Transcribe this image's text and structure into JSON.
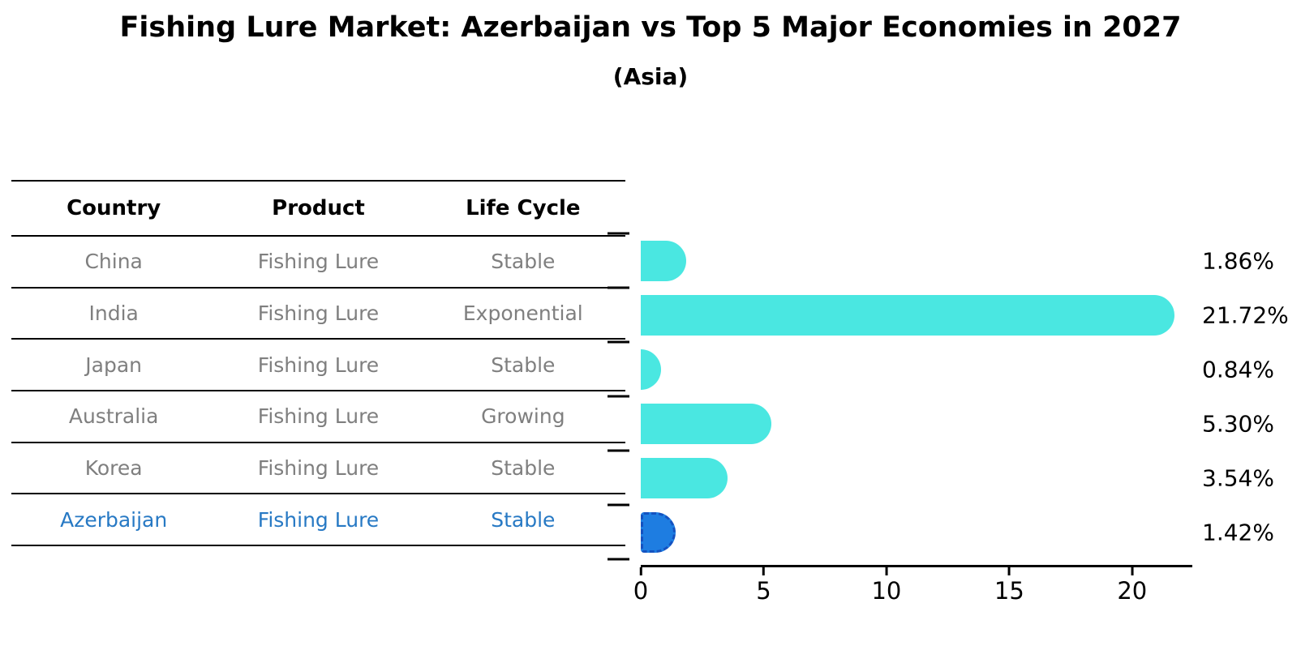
{
  "title": "Fishing Lure Market: Azerbaijan vs Top 5 Major Economies in 2027",
  "subtitle": "(Asia)",
  "table": {
    "headers": [
      "Country",
      "Product",
      "Life Cycle"
    ],
    "rows": [
      {
        "country": "China",
        "product": "Fishing Lure",
        "life_cycle": "Stable",
        "highlight": false
      },
      {
        "country": "India",
        "product": "Fishing Lure",
        "life_cycle": "Exponential",
        "highlight": false
      },
      {
        "country": "Japan",
        "product": "Fishing Lure",
        "life_cycle": "Stable",
        "highlight": false
      },
      {
        "country": "Australia",
        "product": "Fishing Lure",
        "life_cycle": "Growing",
        "highlight": false
      },
      {
        "country": "Korea",
        "product": "Fishing Lure",
        "life_cycle": "Stable",
        "highlight": false
      },
      {
        "country": "Azerbaijan",
        "product": "Fishing Lure",
        "life_cycle": "Stable",
        "highlight": true
      }
    ]
  },
  "chart_data": {
    "type": "bar",
    "orientation": "horizontal",
    "title": "Fishing Lure Market: Azerbaijan vs Top 5 Major Economies in 2027 (Asia)",
    "categories": [
      "China",
      "India",
      "Japan",
      "Australia",
      "Korea",
      "Azerbaijan"
    ],
    "values": [
      1.86,
      21.72,
      0.84,
      5.3,
      3.54,
      1.42
    ],
    "value_labels": [
      "1.86%",
      "21.72%",
      "0.84%",
      "5.30%",
      "3.54%",
      "1.42%"
    ],
    "unit": "%",
    "x_ticks": [
      "0",
      "5",
      "10",
      "15",
      "20"
    ],
    "x_tick_values": [
      0,
      5,
      10,
      15,
      20
    ],
    "xlim": [
      0,
      22.45
    ],
    "xlabel": "",
    "ylabel": "",
    "grid": false,
    "legend": false,
    "highlight_index": 5,
    "colors": {
      "bar": "#4AE7E1",
      "highlight_bar": "#1E7DE1",
      "highlight_border": "#1452C0",
      "highlight_text": "#2779C4",
      "row_text": "#7F7F7F",
      "header_text": "#000000",
      "axis": "#000000"
    }
  }
}
